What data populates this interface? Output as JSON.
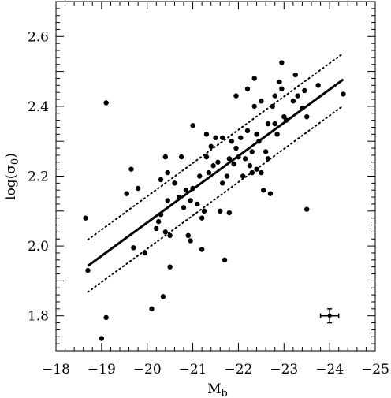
{
  "chart_data": {
    "type": "scatter",
    "xlabel": "M",
    "xlabel_subscript": "b",
    "ylabel": "log(σ",
    "ylabel_subscript": "0",
    "ylabel_close": ")",
    "xlim": [
      -18,
      -25
    ],
    "ylim": [
      1.7,
      2.7
    ],
    "x_ticks": [
      -18,
      -19,
      -20,
      -21,
      -22,
      -23,
      -24,
      -25
    ],
    "x_tick_labels": [
      "−18",
      "−19",
      "−20",
      "−21",
      "−22",
      "−23",
      "−24",
      "−25"
    ],
    "y_ticks": [
      1.8,
      2.0,
      2.2,
      2.4,
      2.6
    ],
    "y_tick_labels": [
      "1.8",
      "2.0",
      "2.2",
      "2.4",
      "2.6"
    ],
    "grid": false,
    "fit_line": {
      "x": [
        -18.7,
        -24.3
      ],
      "y": [
        1.943,
        2.477
      ],
      "style": "solid"
    },
    "upper_bound": {
      "x": [
        -18.7,
        -24.3
      ],
      "y": [
        2.018,
        2.552
      ],
      "style": "dotted"
    },
    "lower_bound": {
      "x": [
        -18.7,
        -24.3
      ],
      "y": [
        1.868,
        2.402
      ],
      "style": "dotted"
    },
    "error_bar": {
      "x": -24.0,
      "y": 1.8,
      "xerr": 0.2,
      "yerr": 0.02
    },
    "points": [
      {
        "x": -18.65,
        "y": 2.08
      },
      {
        "x": -18.7,
        "y": 1.93
      },
      {
        "x": -19.1,
        "y": 2.41
      },
      {
        "x": -19.1,
        "y": 1.795
      },
      {
        "x": -19.0,
        "y": 1.735
      },
      {
        "x": -19.55,
        "y": 2.15
      },
      {
        "x": -19.65,
        "y": 2.22
      },
      {
        "x": -19.7,
        "y": 1.995
      },
      {
        "x": -19.8,
        "y": 2.165
      },
      {
        "x": -19.95,
        "y": 1.98
      },
      {
        "x": -20.1,
        "y": 1.82
      },
      {
        "x": -20.2,
        "y": 2.05
      },
      {
        "x": -20.25,
        "y": 2.07
      },
      {
        "x": -20.3,
        "y": 2.19
      },
      {
        "x": -20.3,
        "y": 2.09
      },
      {
        "x": -20.35,
        "y": 1.855
      },
      {
        "x": -20.4,
        "y": 2.04
      },
      {
        "x": -20.4,
        "y": 2.255
      },
      {
        "x": -20.45,
        "y": 2.21
      },
      {
        "x": -20.45,
        "y": 2.13
      },
      {
        "x": -20.5,
        "y": 2.03
      },
      {
        "x": -20.5,
        "y": 1.94
      },
      {
        "x": -20.6,
        "y": 2.18
      },
      {
        "x": -20.7,
        "y": 2.14
      },
      {
        "x": -20.75,
        "y": 2.255
      },
      {
        "x": -20.8,
        "y": 2.11
      },
      {
        "x": -20.85,
        "y": 2.16
      },
      {
        "x": -20.9,
        "y": 2.03
      },
      {
        "x": -20.95,
        "y": 2.015
      },
      {
        "x": -20.95,
        "y": 2.13
      },
      {
        "x": -21.0,
        "y": 2.345
      },
      {
        "x": -21.0,
        "y": 2.165
      },
      {
        "x": -21.1,
        "y": 2.12
      },
      {
        "x": -21.15,
        "y": 2.2
      },
      {
        "x": -21.2,
        "y": 1.99
      },
      {
        "x": -21.2,
        "y": 2.08
      },
      {
        "x": -21.25,
        "y": 2.1
      },
      {
        "x": -21.3,
        "y": 2.32
      },
      {
        "x": -21.3,
        "y": 2.255
      },
      {
        "x": -21.35,
        "y": 2.21
      },
      {
        "x": -21.4,
        "y": 2.285
      },
      {
        "x": -21.45,
        "y": 2.23
      },
      {
        "x": -21.5,
        "y": 2.31
      },
      {
        "x": -21.55,
        "y": 2.24
      },
      {
        "x": -21.6,
        "y": 2.1
      },
      {
        "x": -21.65,
        "y": 2.31
      },
      {
        "x": -21.65,
        "y": 2.18
      },
      {
        "x": -21.7,
        "y": 1.96
      },
      {
        "x": -21.75,
        "y": 2.2
      },
      {
        "x": -21.8,
        "y": 2.25
      },
      {
        "x": -21.8,
        "y": 2.095
      },
      {
        "x": -21.85,
        "y": 2.3
      },
      {
        "x": -21.9,
        "y": 2.235
      },
      {
        "x": -21.95,
        "y": 2.43
      },
      {
        "x": -21.95,
        "y": 2.28
      },
      {
        "x": -22.0,
        "y": 2.255
      },
      {
        "x": -22.05,
        "y": 2.31
      },
      {
        "x": -22.1,
        "y": 2.2
      },
      {
        "x": -22.15,
        "y": 2.25
      },
      {
        "x": -22.2,
        "y": 2.45
      },
      {
        "x": -22.2,
        "y": 2.33
      },
      {
        "x": -22.25,
        "y": 2.23
      },
      {
        "x": -22.3,
        "y": 2.21
      },
      {
        "x": -22.3,
        "y": 2.27
      },
      {
        "x": -22.35,
        "y": 2.48
      },
      {
        "x": -22.35,
        "y": 2.4
      },
      {
        "x": -22.4,
        "y": 2.32
      },
      {
        "x": -22.4,
        "y": 2.22
      },
      {
        "x": -22.45,
        "y": 2.3
      },
      {
        "x": -22.5,
        "y": 2.415
      },
      {
        "x": -22.5,
        "y": 2.21
      },
      {
        "x": -22.55,
        "y": 2.16
      },
      {
        "x": -22.6,
        "y": 2.27
      },
      {
        "x": -22.65,
        "y": 2.35
      },
      {
        "x": -22.65,
        "y": 2.25
      },
      {
        "x": -22.7,
        "y": 2.15
      },
      {
        "x": -22.75,
        "y": 2.4
      },
      {
        "x": -22.8,
        "y": 2.43
      },
      {
        "x": -22.8,
        "y": 2.35
      },
      {
        "x": -22.85,
        "y": 2.32
      },
      {
        "x": -22.9,
        "y": 2.47
      },
      {
        "x": -22.95,
        "y": 2.525
      },
      {
        "x": -22.95,
        "y": 2.45
      },
      {
        "x": -23.0,
        "y": 2.37
      },
      {
        "x": -23.05,
        "y": 2.36
      },
      {
        "x": -23.2,
        "y": 2.415
      },
      {
        "x": -23.25,
        "y": 2.49
      },
      {
        "x": -23.3,
        "y": 2.43
      },
      {
        "x": -23.4,
        "y": 2.395
      },
      {
        "x": -23.45,
        "y": 2.445
      },
      {
        "x": -23.5,
        "y": 2.37
      },
      {
        "x": -23.5,
        "y": 2.105
      },
      {
        "x": -23.75,
        "y": 2.46
      },
      {
        "x": -24.3,
        "y": 2.435
      }
    ]
  }
}
